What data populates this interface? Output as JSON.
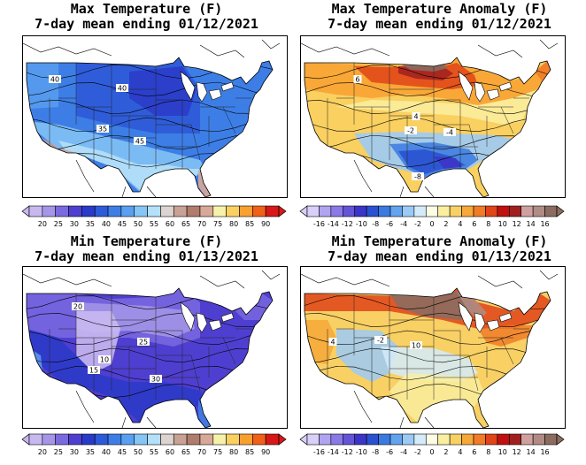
{
  "panels": [
    {
      "id": "max-temp",
      "title1": "Max Temperature (F)",
      "title2": "7-day mean ending 01/12/2021",
      "colorbar": {
        "labels": [
          "20",
          "25",
          "30",
          "35",
          "40",
          "45",
          "50",
          "55",
          "60",
          "65",
          "70",
          "75",
          "80",
          "85",
          "90"
        ],
        "colors": [
          "#c8b8f0",
          "#a696e8",
          "#7a6ae0",
          "#4f3fd0",
          "#2a3ac8",
          "#2d5ad8",
          "#3d7ee6",
          "#5aa0f0",
          "#86c6f6",
          "#b4e0fa",
          "#dcd4d0",
          "#c8a294",
          "#b07c6c",
          "#d8a898",
          "#f6f2a8",
          "#fad060",
          "#f8a030",
          "#f06018",
          "#d81818"
        ]
      },
      "map_labels": [
        {
          "text": "40",
          "where": "west"
        },
        {
          "text": "40",
          "where": "north-central"
        },
        {
          "text": "35",
          "where": "central"
        },
        {
          "text": "45",
          "where": "south-central"
        }
      ]
    },
    {
      "id": "max-anom",
      "title1": "Max Temperature Anomaly (F)",
      "title2": "7-day mean ending 01/12/2021",
      "colorbar": {
        "labels": [
          "-16",
          "-14",
          "-12",
          "-10",
          "-8",
          "-6",
          "-4",
          "-2",
          "0",
          "2",
          "4",
          "6",
          "8",
          "10",
          "12",
          "14",
          "16"
        ],
        "colors": [
          "#d8d0f8",
          "#b0a4f0",
          "#8a7ae6",
          "#6454d8",
          "#3c34c8",
          "#2a52d0",
          "#3a7ae0",
          "#62a4ee",
          "#9ccaf6",
          "#d4ecfa",
          "#fdfce4",
          "#faefa0",
          "#f8d064",
          "#f6a838",
          "#f07c28",
          "#e04418",
          "#c01010",
          "#a02020",
          "#d0a0a0",
          "#b08c84",
          "#8c6c60"
        ]
      },
      "map_labels": [
        {
          "text": "6",
          "where": "north"
        },
        {
          "text": "4",
          "where": "central"
        },
        {
          "text": "-2",
          "where": "central-south"
        },
        {
          "text": "-4",
          "where": "south-central"
        },
        {
          "text": "-8",
          "where": "south"
        }
      ]
    },
    {
      "id": "min-temp",
      "title1": "Min Temperature (F)",
      "title2": "7-day mean ending 01/13/2021",
      "colorbar": {
        "labels": [
          "20",
          "25",
          "30",
          "35",
          "40",
          "45",
          "50",
          "55",
          "60",
          "65",
          "70",
          "75",
          "80",
          "85",
          "90"
        ],
        "colors": [
          "#c8b8f0",
          "#a696e8",
          "#7a6ae0",
          "#4f3fd0",
          "#2a3ac8",
          "#2d5ad8",
          "#3d7ee6",
          "#5aa0f0",
          "#86c6f6",
          "#b4e0fa",
          "#dcd4d0",
          "#c8a294",
          "#b07c6c",
          "#d8a898",
          "#f6f2a8",
          "#fad060",
          "#f8a030",
          "#f06018",
          "#d81818"
        ]
      },
      "map_labels": [
        {
          "text": "20",
          "where": "northwest"
        },
        {
          "text": "25",
          "where": "central"
        },
        {
          "text": "10",
          "where": "rockies"
        },
        {
          "text": "15",
          "where": "southwest"
        },
        {
          "text": "30",
          "where": "south"
        }
      ]
    },
    {
      "id": "min-anom",
      "title1": "Min Temperature Anomaly (F)",
      "title2": "7-day mean ending 01/13/2021",
      "colorbar": {
        "labels": [
          "-16",
          "-14",
          "-12",
          "-10",
          "-8",
          "-6",
          "-4",
          "-2",
          "0",
          "2",
          "4",
          "6",
          "8",
          "10",
          "12",
          "14",
          "16"
        ],
        "colors": [
          "#d8d0f8",
          "#b0a4f0",
          "#8a7ae6",
          "#6454d8",
          "#3c34c8",
          "#2a52d0",
          "#3a7ae0",
          "#62a4ee",
          "#9ccaf6",
          "#d4ecfa",
          "#fdfce4",
          "#faefa0",
          "#f8d064",
          "#f6a838",
          "#f07c28",
          "#e04418",
          "#c01010",
          "#a02020",
          "#d0a0a0",
          "#b08c84",
          "#8c6c60"
        ]
      },
      "map_labels": [
        {
          "text": "10",
          "where": "north"
        },
        {
          "text": "4",
          "where": "west"
        },
        {
          "text": "-2",
          "where": "central"
        }
      ]
    }
  ]
}
